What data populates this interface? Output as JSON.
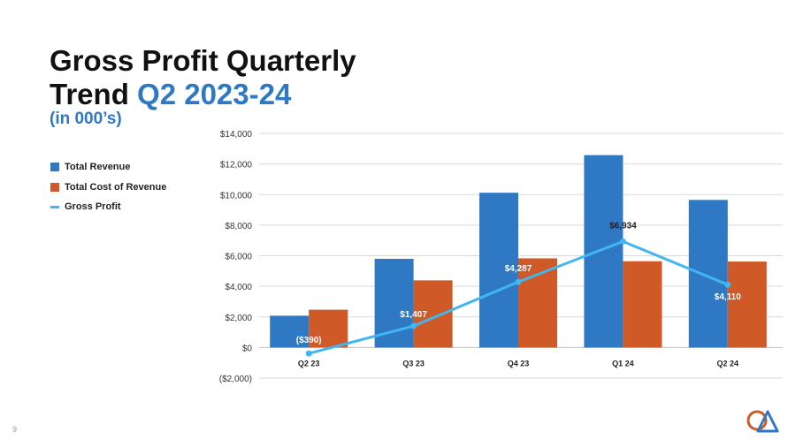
{
  "slide": {
    "title_part1": "Gross Profit Quarterly",
    "title_part2a": "Trend ",
    "title_part2b": "Q2 2023-24",
    "subtitle": "(in 000’s)",
    "page_number": "9"
  },
  "colors": {
    "revenue": "#2f78c4",
    "cost": "#cf5a27",
    "profit": "#41b6f0",
    "accent": "#2f78c4",
    "grid": "#d9d9d9"
  },
  "chart_data": {
    "type": "bar",
    "categories": [
      "Q2 23",
      "Q3 23",
      "Q4 23",
      "Q1 24",
      "Q2 24"
    ],
    "series": [
      {
        "name": "Total Revenue",
        "type": "bar",
        "values": [
          2080,
          5800,
          10120,
          12580,
          9650
        ]
      },
      {
        "name": "Total Cost of Revenue",
        "type": "bar",
        "values": [
          2470,
          4390,
          5830,
          5640,
          5620
        ]
      },
      {
        "name": "Gross Profit",
        "type": "line",
        "values": [
          -390,
          1407,
          4287,
          6934,
          4110
        ],
        "labels": [
          "($390)",
          "$1,407",
          "$4,287",
          "$6,934",
          "$4,110"
        ]
      }
    ],
    "y_ticks": [
      14000,
      12000,
      10000,
      8000,
      6000,
      4000,
      2000,
      0,
      -2000
    ],
    "y_tick_labels": [
      "$14,000",
      "$12,000",
      "$10,000",
      "$8,000",
      "$6,000",
      "$4,000",
      "$2,000",
      "$0",
      "($2,000)"
    ],
    "ylim": [
      -2000,
      14000
    ],
    "grid": true,
    "legend": "left"
  }
}
